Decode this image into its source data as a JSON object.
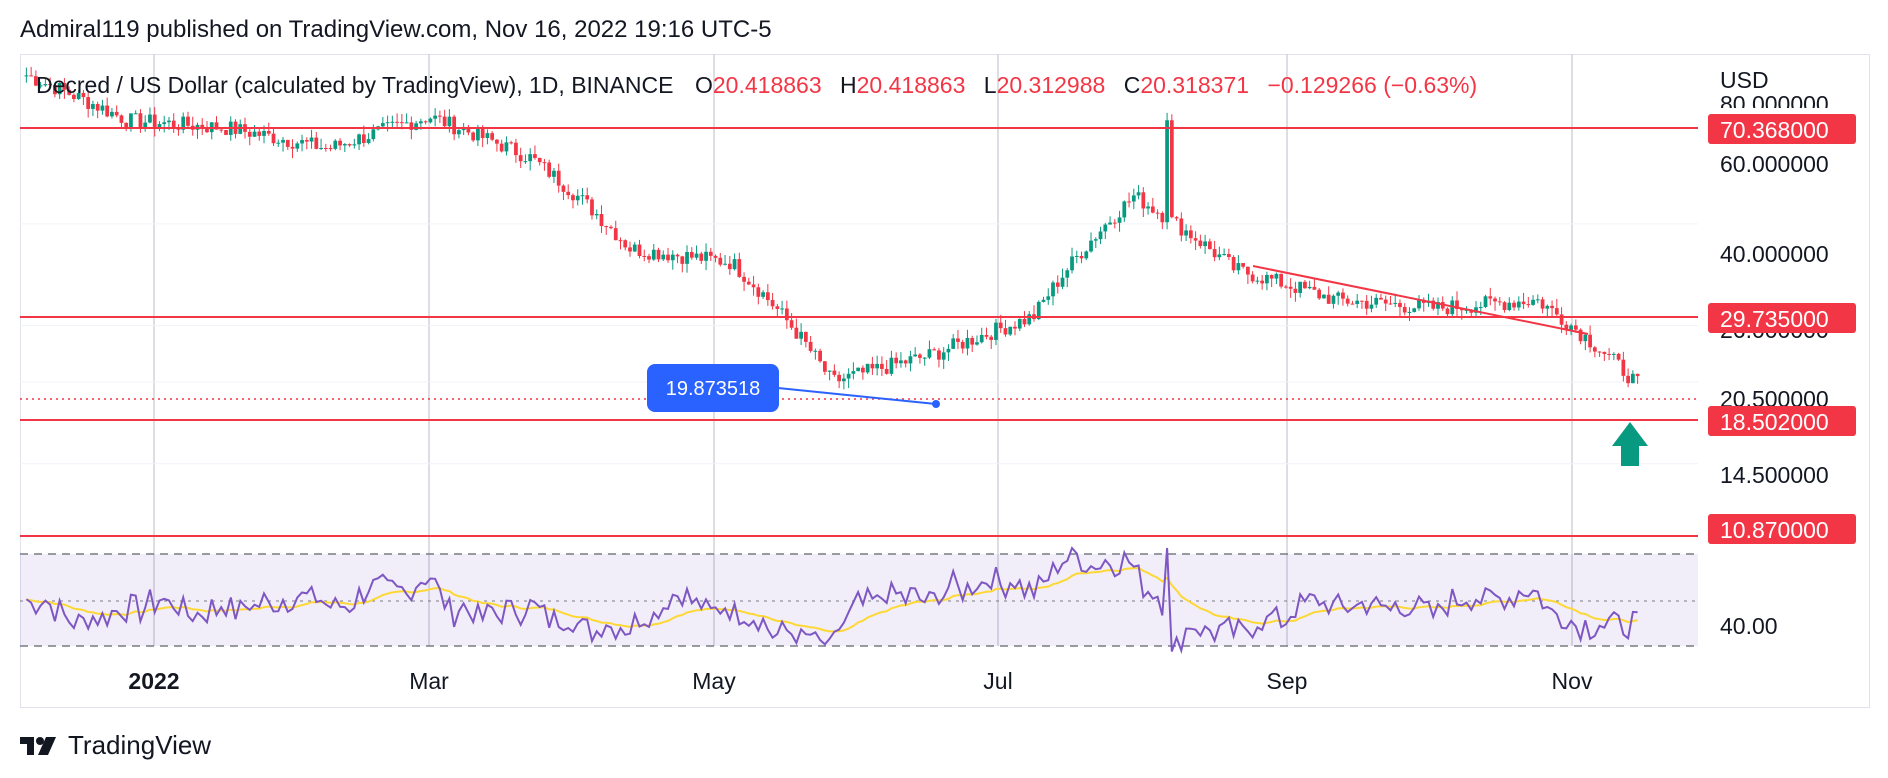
{
  "header": {
    "published": "Admiral119 published on TradingView.com, Nov 16, 2022 19:16 UTC-5"
  },
  "legend": {
    "symbol": "Decred / US Dollar (calculated by TradingView), 1D, BINANCE",
    "o_label": "O",
    "o_value": "20.418863",
    "h_label": "H",
    "h_value": "20.418863",
    "l_label": "L",
    "l_value": "20.312988",
    "c_label": "C",
    "c_value": "20.318371",
    "change": "−0.129266 (−0.63%)"
  },
  "price_axis": {
    "currency": "USD",
    "ticks": [
      "60.000000",
      "40.000000",
      "26.000000",
      "20.500000",
      "14.500000"
    ],
    "highlighted": [
      "70.368000",
      "29.735000",
      "18.502000",
      "10.870000"
    ],
    "partial_top_tick": "80.000000"
  },
  "rsi_axis": {
    "tick": "40.00"
  },
  "time_axis": {
    "labels": [
      "2022",
      "Mar",
      "May",
      "Jul",
      "Sep",
      "Nov"
    ]
  },
  "annotation": {
    "callout": "19.873518"
  },
  "footer": {
    "brand": "TradingView"
  },
  "colors": {
    "up": "#089981",
    "down": "#f23645",
    "level": "#f23645",
    "rsi": "#7e57c2",
    "rsi_ma": "#fdd835",
    "callout": "#2962ff"
  },
  "chart_data": {
    "type": "candlestick",
    "title": "Decred / US Dollar (calculated by TradingView), 1D, BINANCE",
    "ylabel": "USD",
    "scale": "log",
    "x_range": [
      "2021-12",
      "2022-11"
    ],
    "y_range": [
      10.5,
      80
    ],
    "horizontal_levels": [
      70.368,
      29.735,
      18.502,
      10.87
    ],
    "trendline": {
      "from": [
        "2022-08",
        38
      ],
      "to": [
        "2022-11",
        29.7
      ]
    },
    "current_price_line": 20.5,
    "marked_low": 19.873518,
    "approx_close_path": [
      {
        "x": "Dec 2021",
        "y": 75
      },
      {
        "x": "Jan 2022",
        "y": 62
      },
      {
        "x": "Feb 2022",
        "y": 60
      },
      {
        "x": "Mar 2022",
        "y": 55
      },
      {
        "x": "Apr 2022",
        "y": 63
      },
      {
        "x": "Early May 2022",
        "y": 53
      },
      {
        "x": "Mid May 2022",
        "y": 36
      },
      {
        "x": "Jun 2022",
        "y": 34
      },
      {
        "x": "Late Jun 2022",
        "y": 20.5
      },
      {
        "x": "Jul 2022",
        "y": 23
      },
      {
        "x": "Early Aug 2022",
        "y": 27
      },
      {
        "x": "Mid Aug 2022",
        "y": 45
      },
      {
        "x": "Late Aug 2022",
        "y": 33
      },
      {
        "x": "Sep 2022",
        "y": 29
      },
      {
        "x": "Oct 2022",
        "y": 28
      },
      {
        "x": "Early Nov 2022",
        "y": 29
      },
      {
        "x": "Mid Nov 2022",
        "y": 20.3
      }
    ],
    "indicator": {
      "name": "RSI",
      "guide": 40.0
    }
  }
}
